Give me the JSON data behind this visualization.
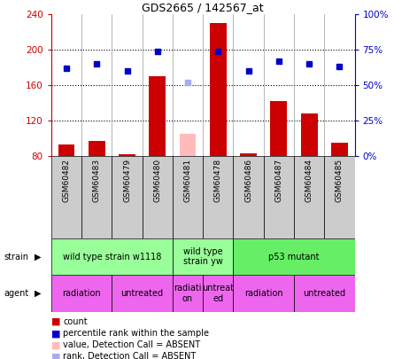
{
  "title": "GDS2665 / 142567_at",
  "samples": [
    "GSM60482",
    "GSM60483",
    "GSM60479",
    "GSM60480",
    "GSM60481",
    "GSM60478",
    "GSM60486",
    "GSM60487",
    "GSM60484",
    "GSM60485"
  ],
  "count_values": [
    93,
    97,
    82,
    170,
    null,
    230,
    83,
    142,
    128,
    95
  ],
  "count_absent": [
    null,
    null,
    null,
    null,
    105,
    null,
    null,
    null,
    null,
    null
  ],
  "rank_values": [
    62,
    65,
    60,
    74,
    null,
    74,
    60,
    67,
    65,
    63
  ],
  "rank_absent": [
    null,
    null,
    null,
    null,
    52,
    null,
    null,
    null,
    null,
    null
  ],
  "ylim_left": [
    80,
    240
  ],
  "ylim_right": [
    0,
    100
  ],
  "yticks_left": [
    80,
    120,
    160,
    200,
    240
  ],
  "yticks_right": [
    0,
    25,
    50,
    75,
    100
  ],
  "ytick_labels_right": [
    "0%",
    "25%",
    "50%",
    "75%",
    "100%"
  ],
  "strain_groups": [
    {
      "label": "wild type strain w1118",
      "start": 0,
      "end": 4,
      "color": "#99ff99"
    },
    {
      "label": "wild type\nstrain yw",
      "start": 4,
      "end": 6,
      "color": "#99ff99"
    },
    {
      "label": "p53 mutant",
      "start": 6,
      "end": 10,
      "color": "#66ee66"
    }
  ],
  "agent_groups": [
    {
      "label": "radiation",
      "start": 0,
      "end": 2,
      "color": "#ee66ee"
    },
    {
      "label": "untreated",
      "start": 2,
      "end": 4,
      "color": "#ee66ee"
    },
    {
      "label": "radiati\non",
      "start": 4,
      "end": 5,
      "color": "#ee66ee"
    },
    {
      "label": "untreat\ned",
      "start": 5,
      "end": 6,
      "color": "#ee66ee"
    },
    {
      "label": "radiation",
      "start": 6,
      "end": 8,
      "color": "#ee66ee"
    },
    {
      "label": "untreated",
      "start": 8,
      "end": 10,
      "color": "#ee66ee"
    }
  ],
  "bar_color": "#cc0000",
  "bar_absent_color": "#ffbbbb",
  "dot_color": "#0000cc",
  "dot_absent_color": "#aaaaee",
  "axis_color_left": "#cc0000",
  "axis_color_right": "#0000cc",
  "tick_label_area_color": "#cccccc",
  "legend_items": [
    {
      "symbol_color": "#cc0000",
      "label": "count"
    },
    {
      "symbol_color": "#0000cc",
      "label": "percentile rank within the sample"
    },
    {
      "symbol_color": "#ffbbbb",
      "label": "value, Detection Call = ABSENT"
    },
    {
      "symbol_color": "#aaaaee",
      "label": "rank, Detection Call = ABSENT"
    }
  ]
}
